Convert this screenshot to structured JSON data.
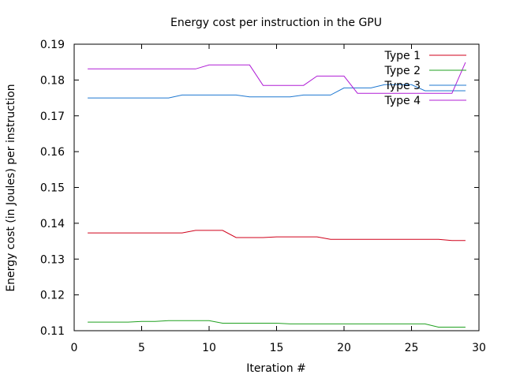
{
  "chart_data": {
    "type": "line",
    "title": "Energy cost per instruction in the GPU",
    "xlabel": "Iteration #",
    "ylabel": "Energy cost (in Joules) per instruction",
    "xlim": [
      0,
      30
    ],
    "ylim": [
      0.11,
      0.19
    ],
    "xticks": [
      "0",
      "5",
      "10",
      "15",
      "20",
      "25",
      "30"
    ],
    "yticks": [
      "0.11",
      "0.12",
      "0.13",
      "0.14",
      "0.15",
      "0.16",
      "0.17",
      "0.18",
      "0.19"
    ],
    "grid": false,
    "legend_position": "top-right",
    "x": [
      1,
      2,
      3,
      4,
      5,
      6,
      7,
      8,
      9,
      10,
      11,
      12,
      13,
      14,
      15,
      16,
      17,
      18,
      19,
      20,
      21,
      22,
      23,
      24,
      25,
      26,
      27,
      28,
      29
    ],
    "series": [
      {
        "name": "Type 1",
        "color": "#d0021b",
        "values": [
          0.1373,
          0.1373,
          0.1373,
          0.1373,
          0.1373,
          0.1373,
          0.1373,
          0.1373,
          0.138,
          0.138,
          0.138,
          0.136,
          0.136,
          0.136,
          0.1362,
          0.1362,
          0.1362,
          0.1362,
          0.1355,
          0.1355,
          0.1355,
          0.1355,
          0.1355,
          0.1355,
          0.1355,
          0.1355,
          0.1355,
          0.1352,
          0.1352
        ]
      },
      {
        "name": "Type 2",
        "color": "#21a121",
        "values": [
          0.1124,
          0.1124,
          0.1124,
          0.1124,
          0.1126,
          0.1126,
          0.1128,
          0.1128,
          0.1128,
          0.1128,
          0.1121,
          0.1121,
          0.1121,
          0.1121,
          0.1121,
          0.1119,
          0.1119,
          0.1119,
          0.1119,
          0.1119,
          0.1119,
          0.1119,
          0.1119,
          0.1119,
          0.1119,
          0.1119,
          0.111,
          0.111,
          0.111
        ]
      },
      {
        "name": "Type 3",
        "color": "#1f78d1",
        "values": [
          0.175,
          0.175,
          0.175,
          0.175,
          0.175,
          0.175,
          0.175,
          0.1758,
          0.1758,
          0.1758,
          0.1758,
          0.1758,
          0.1753,
          0.1753,
          0.1753,
          0.1753,
          0.1758,
          0.1758,
          0.1758,
          0.1778,
          0.1778,
          0.1778,
          0.1787,
          0.1787,
          0.1787,
          0.177,
          0.177,
          0.177,
          0.177
        ]
      },
      {
        "name": "Type 4",
        "color": "#b01fd6",
        "values": [
          0.1831,
          0.1831,
          0.1831,
          0.1831,
          0.1831,
          0.1831,
          0.1831,
          0.1831,
          0.1831,
          0.1842,
          0.1842,
          0.1842,
          0.1842,
          0.1785,
          0.1785,
          0.1785,
          0.1785,
          0.1811,
          0.1811,
          0.1811,
          0.1763,
          0.1763,
          0.1763,
          0.1763,
          0.1763,
          0.1763,
          0.1763,
          0.1763,
          0.1849
        ]
      }
    ]
  }
}
